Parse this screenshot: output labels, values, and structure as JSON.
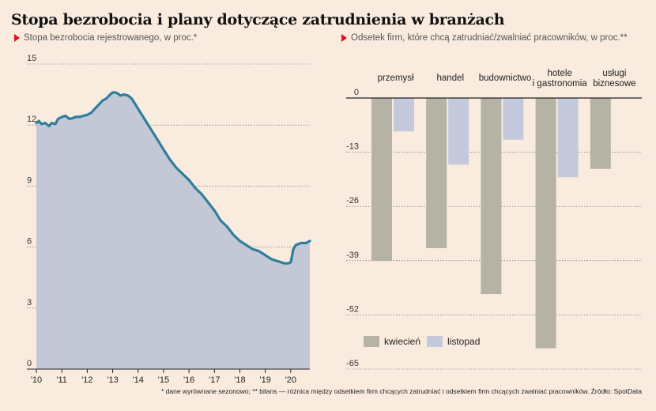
{
  "title": "Stopa bezrobocia i plany dotyczące zatrudnienia w branżach",
  "footnote": "* dane wyrównane sezonowo; ** bilans — różnica między odsetkiem firm chcących zatrudniać i odsetkiem firm chcących zwalniać pracowników. Źródło: SpotData",
  "colors": {
    "background": "#f9ecdf",
    "line": "#2f7f9c",
    "area": "#c4c8d6",
    "kwiecien": "#b5b3a5",
    "listopad": "#c4c9db",
    "accent_arrow": "#e0121b"
  },
  "chart_data": [
    {
      "type": "area",
      "subtitle": "Stopa bezrobocia rejestrowanego, w proc.*",
      "xlabel": "",
      "ylabel": "",
      "ylim": [
        0,
        15
      ],
      "xlim": [
        2010,
        2020.75
      ],
      "yticks": [
        0,
        3,
        6,
        9,
        12,
        15
      ],
      "xtick_labels": [
        "'10",
        "'11",
        "'12",
        "'13",
        "'14",
        "'15",
        "'16",
        "'17",
        "'18",
        "'19",
        "'20"
      ],
      "grid": true,
      "series": [
        {
          "x": [
            2010,
            2010.1,
            2010.2,
            2010.35,
            2010.5,
            2010.6,
            2010.75,
            2010.85,
            2011,
            2011.15,
            2011.3,
            2011.45,
            2011.55,
            2011.7,
            2011.85,
            2012,
            2012.15,
            2012.3,
            2012.45,
            2012.6,
            2012.75,
            2012.9,
            2013,
            2013.1,
            2013.2,
            2013.3,
            2013.45,
            2013.6,
            2013.75,
            2013.9,
            2014,
            2014.25,
            2014.5,
            2014.75,
            2015,
            2015.25,
            2015.5,
            2015.75,
            2016,
            2016.25,
            2016.5,
            2016.75,
            2017,
            2017.25,
            2017.5,
            2017.75,
            2018,
            2018.25,
            2018.5,
            2018.75,
            2019,
            2019.25,
            2019.5,
            2019.75,
            2019.9,
            2020,
            2020.1,
            2020.2,
            2020.4,
            2020.6,
            2020.75
          ],
          "y": [
            12.1,
            12.2,
            12.05,
            12.1,
            11.95,
            12.1,
            12.05,
            12.3,
            12.4,
            12.45,
            12.3,
            12.35,
            12.4,
            12.4,
            12.45,
            12.5,
            12.6,
            12.8,
            13.0,
            13.2,
            13.3,
            13.5,
            13.6,
            13.6,
            13.55,
            13.45,
            13.5,
            13.45,
            13.3,
            13.0,
            12.8,
            12.3,
            11.8,
            11.3,
            10.8,
            10.3,
            9.9,
            9.6,
            9.3,
            8.9,
            8.6,
            8.2,
            7.8,
            7.3,
            7.0,
            6.6,
            6.3,
            6.1,
            5.9,
            5.8,
            5.6,
            5.4,
            5.3,
            5.2,
            5.2,
            5.25,
            5.9,
            6.1,
            6.2,
            6.2,
            6.3
          ]
        }
      ]
    },
    {
      "type": "bar",
      "subtitle": "Odsetek firm, które chcą zatrudniać/zwalniać pracowników, w proc.**",
      "xlabel": "",
      "ylabel": "",
      "ylim": [
        -65,
        0
      ],
      "yticks": [
        0,
        -13,
        -26,
        -39,
        -52,
        -65
      ],
      "grid": true,
      "legend_position": "bottom-left",
      "categories": [
        "przemysł",
        "handel",
        "budownictwo",
        "hotele\ni gastronomia",
        "usługi\nbiznesowe"
      ],
      "series": [
        {
          "name": "kwiecień",
          "values": [
            -39,
            -36,
            -47,
            -60,
            -17
          ]
        },
        {
          "name": "listopad",
          "values": [
            -8,
            -16,
            -10,
            -19,
            null
          ]
        }
      ]
    }
  ]
}
